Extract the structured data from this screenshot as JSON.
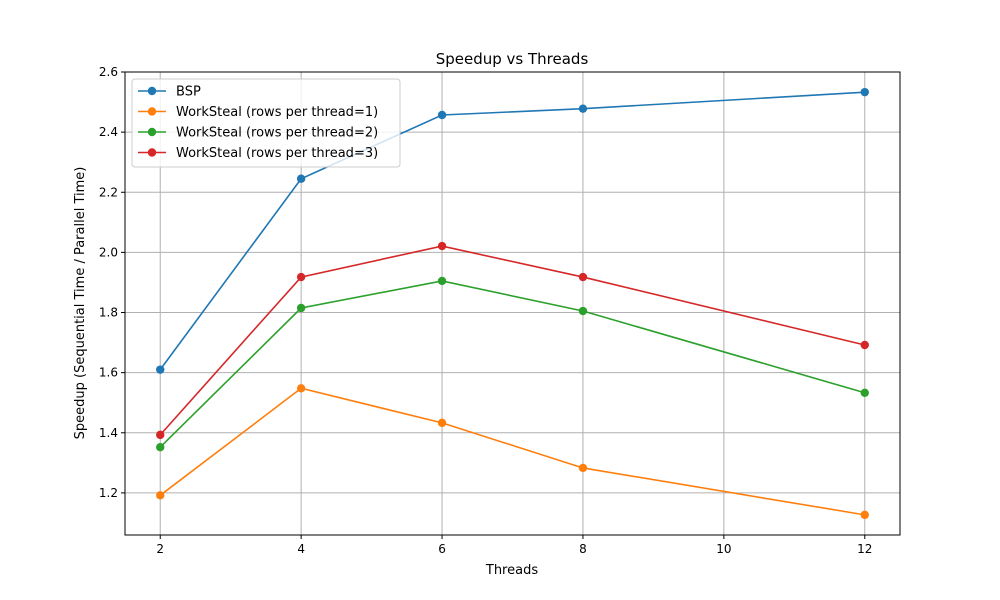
{
  "chart_data": {
    "type": "line",
    "title": "Speedup vs Threads",
    "xlabel": "Threads",
    "ylabel": "Speedup (Sequential Time / Parallel Time)",
    "x": [
      2,
      4,
      6,
      8,
      12
    ],
    "xticks": [
      2,
      4,
      6,
      8,
      10,
      12
    ],
    "yticks": [
      1.2,
      1.4,
      1.6,
      1.8,
      2.0,
      2.2,
      2.4,
      2.6
    ],
    "xlim": [
      1.5,
      12.5
    ],
    "ylim": [
      1.06,
      2.6
    ],
    "grid": true,
    "legend_position": "top-left",
    "series": [
      {
        "name": "BSP",
        "color": "#1f77b4",
        "values": [
          1.61,
          2.245,
          2.457,
          2.478,
          2.533
        ]
      },
      {
        "name": "WorkSteal (rows per thread=1)",
        "color": "#ff7f0e",
        "values": [
          1.192,
          1.548,
          1.433,
          1.283,
          1.127
        ]
      },
      {
        "name": "WorkSteal (rows per thread=2)",
        "color": "#2ca02c",
        "values": [
          1.352,
          1.815,
          1.905,
          1.805,
          1.533
        ]
      },
      {
        "name": "WorkSteal (rows per thread=3)",
        "color": "#d62728",
        "values": [
          1.393,
          1.918,
          2.021,
          1.918,
          1.692
        ]
      }
    ]
  }
}
